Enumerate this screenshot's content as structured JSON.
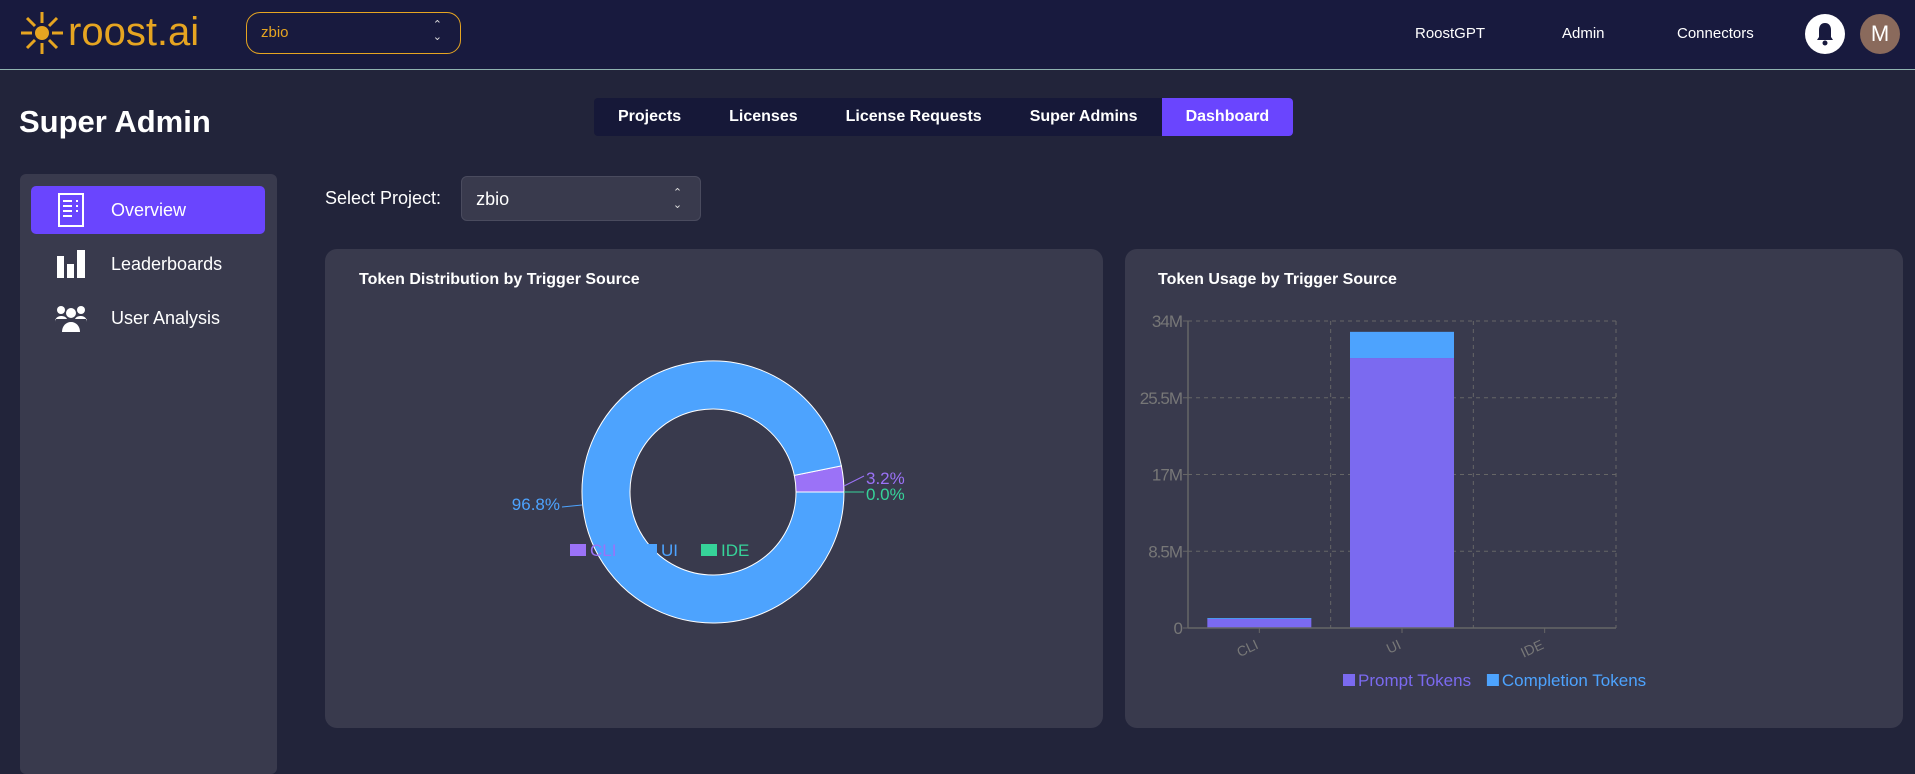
{
  "header": {
    "brand": "roost.ai",
    "project": "zbio",
    "nav": [
      "RoostGPT",
      "Admin",
      "Connectors"
    ],
    "avatar_initial": "M"
  },
  "page_title": "Super Admin",
  "tabs": [
    {
      "label": "Projects"
    },
    {
      "label": "Licenses"
    },
    {
      "label": "License Requests"
    },
    {
      "label": "Super Admins"
    },
    {
      "label": "Dashboard",
      "active": true
    }
  ],
  "sidebar": {
    "items": [
      {
        "label": "Overview",
        "icon": "document-list-icon",
        "active": true
      },
      {
        "label": "Leaderboards",
        "icon": "bar-chart-icon"
      },
      {
        "label": "User Analysis",
        "icon": "users-icon"
      }
    ]
  },
  "select": {
    "label": "Select Project:",
    "value": "zbio"
  },
  "colors": {
    "accent": "#6a45fe",
    "cli": "#9b72f7",
    "ui": "#4da3fe",
    "ide": "#36d399",
    "prompt": "#7b6af0",
    "completion": "#4da3fe"
  },
  "chart_data": [
    {
      "type": "pie",
      "title": "Token Distribution by Trigger Source",
      "categories": [
        "CLI",
        "UI",
        "IDE"
      ],
      "values": [
        3.2,
        96.8,
        0.0
      ],
      "labels": [
        "3.2%",
        "96.8%",
        "0.0%"
      ],
      "donut": true,
      "legend": "bottom"
    },
    {
      "type": "bar",
      "stacked": true,
      "title": "Token Usage by Trigger Source",
      "categories": [
        "CLI",
        "UI",
        "IDE"
      ],
      "series": [
        {
          "name": "Prompt Tokens",
          "values": [
            1.0,
            29.9,
            0
          ]
        },
        {
          "name": "Completion Tokens",
          "values": [
            0.1,
            2.9,
            0
          ]
        }
      ],
      "unit": "M",
      "ylim": [
        0,
        34
      ],
      "yticks": [
        "0",
        "8.5M",
        "17M",
        "25.5M",
        "34M"
      ],
      "yticks_values": [
        0,
        8.5,
        17,
        25.5,
        34
      ],
      "grid": true,
      "legend": "bottom"
    }
  ]
}
